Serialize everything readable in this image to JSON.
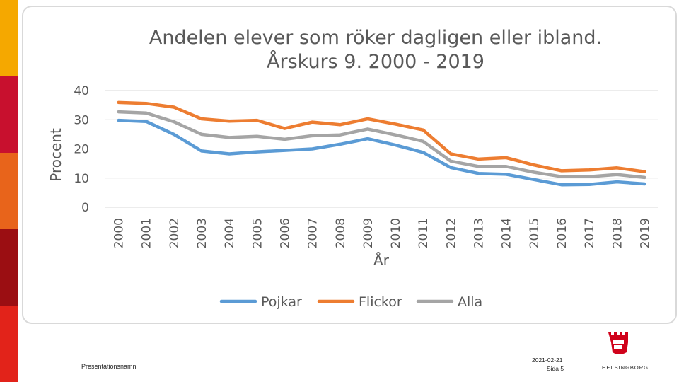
{
  "slide": {
    "footer_name": "Presentationsnamn",
    "date": "2021-02-21",
    "page": "Sida 5",
    "logo_text": "HELSINGBORG"
  },
  "colors": {
    "stripes": [
      "#f5a800",
      "#c8102e",
      "#e8641b",
      "#9b0e12",
      "#e2231a"
    ],
    "logo_red": "#d0021b"
  },
  "chart_data": {
    "type": "line",
    "title_line1": "Andelen elever som röker dagligen eller ibland.",
    "title_line2": "Årskurs 9. 2000 - 2019",
    "xlabel": "År",
    "ylabel": "Procent",
    "ylim": [
      0,
      40
    ],
    "yticks": [
      0,
      10,
      20,
      30,
      40
    ],
    "grid": true,
    "legend": "bottom",
    "categories": [
      "2000",
      "2001",
      "2002",
      "2003",
      "2004",
      "2005",
      "2006",
      "2007",
      "2008",
      "2009",
      "2010",
      "2011",
      "2012",
      "2013",
      "2014",
      "2015",
      "2016",
      "2017",
      "2018",
      "2019"
    ],
    "series": [
      {
        "name": "Pojkar",
        "color": "#5b9bd5",
        "values": [
          29.8,
          29.4,
          25,
          19.3,
          18.3,
          19,
          19.5,
          20,
          21.6,
          23.5,
          21.3,
          18.8,
          13.6,
          11.6,
          11.3,
          9.5,
          7.7,
          7.8,
          8.7,
          8
        ]
      },
      {
        "name": "Flickor",
        "color": "#ed7d31",
        "values": [
          35.9,
          35.6,
          34.3,
          30.3,
          29.5,
          29.8,
          27,
          29.2,
          28.3,
          30.3,
          28.5,
          26.5,
          18.3,
          16.5,
          17,
          14.5,
          12.5,
          12.8,
          13.5,
          12.2
        ]
      },
      {
        "name": "Alla",
        "color": "#a5a5a5",
        "values": [
          32.7,
          32.3,
          29.3,
          25,
          23.9,
          24.3,
          23.3,
          24.5,
          24.8,
          26.8,
          24.8,
          22.6,
          15.8,
          14,
          14,
          12,
          10.5,
          10.5,
          11.2,
          10.2
        ]
      }
    ]
  }
}
